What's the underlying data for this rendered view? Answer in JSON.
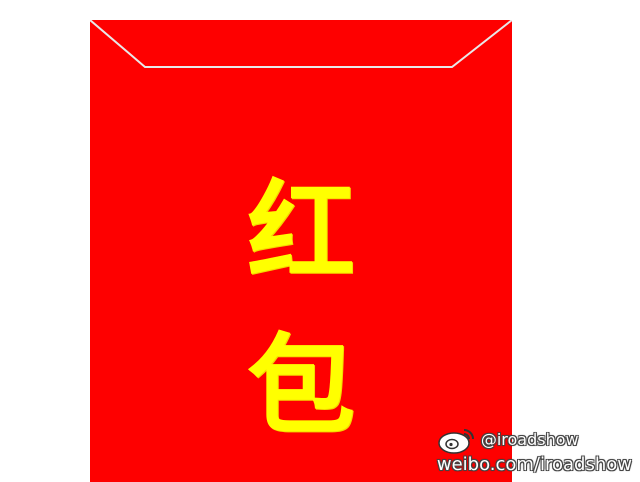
{
  "envelope": {
    "color": "#fe0000",
    "text_color": "#ffff00",
    "char_top": "红",
    "char_bottom": "包"
  },
  "watermark": {
    "icon": "weibo-icon",
    "handle": "@iroadshow",
    "url": "weibo.com/iroadshow"
  }
}
